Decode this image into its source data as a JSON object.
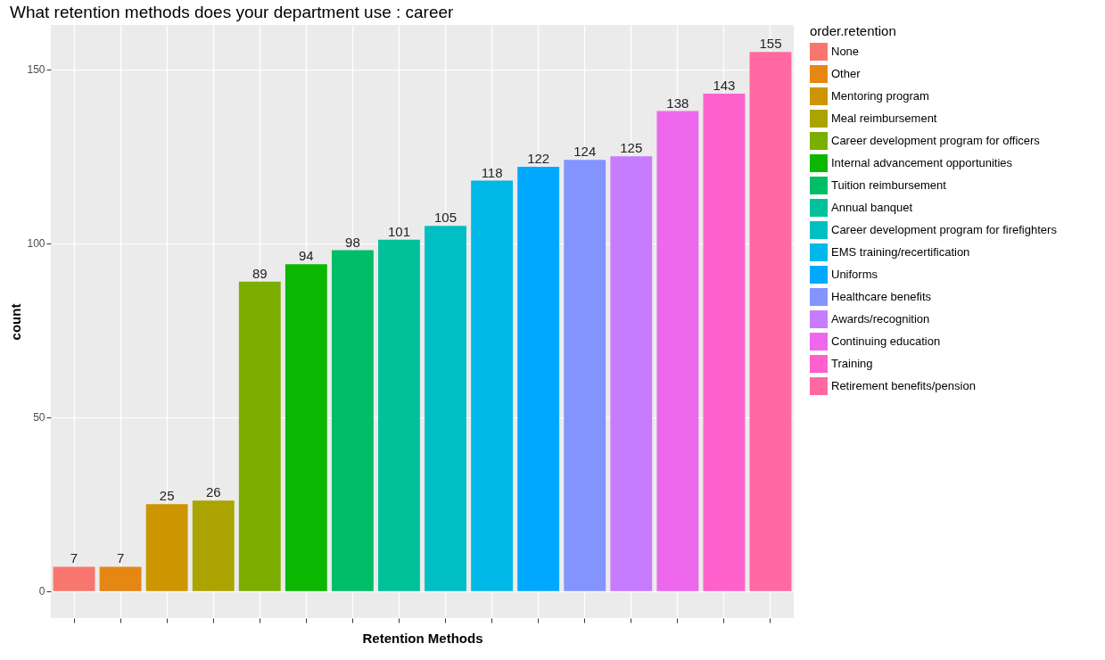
{
  "chart_data": {
    "type": "bar",
    "title": "What retention methods does your department use : career",
    "xlabel": "Retention Methods",
    "ylabel": "count",
    "legend_title": "order.retention",
    "categories": [
      null,
      null,
      null,
      null,
      null,
      null,
      null,
      null,
      null,
      null,
      null,
      null,
      null,
      null,
      null,
      null
    ],
    "series": [
      {
        "name": "None",
        "color": "#f8766d",
        "values": [
          7,
          null,
          null,
          null,
          null,
          null,
          null,
          null,
          null,
          null,
          null,
          null,
          null,
          null,
          null,
          null
        ]
      },
      {
        "name": "Other",
        "color": "#e68613",
        "values": [
          null,
          7,
          null,
          null,
          null,
          null,
          null,
          null,
          null,
          null,
          null,
          null,
          null,
          null,
          null,
          null
        ]
      },
      {
        "name": "Mentoring program",
        "color": "#cd9600",
        "values": [
          null,
          null,
          25,
          null,
          null,
          null,
          null,
          null,
          null,
          null,
          null,
          null,
          null,
          null,
          null,
          null
        ]
      },
      {
        "name": "Meal reimbursement",
        "color": "#aba300",
        "values": [
          null,
          null,
          null,
          26,
          null,
          null,
          null,
          null,
          null,
          null,
          null,
          null,
          null,
          null,
          null,
          null
        ]
      },
      {
        "name": "Career development program for officers",
        "color": "#7cae00",
        "values": [
          null,
          null,
          null,
          null,
          89,
          null,
          null,
          null,
          null,
          null,
          null,
          null,
          null,
          null,
          null,
          null
        ]
      },
      {
        "name": "Internal advancement opportunities",
        "color": "#0cb702",
        "values": [
          null,
          null,
          null,
          null,
          null,
          94,
          null,
          null,
          null,
          null,
          null,
          null,
          null,
          null,
          null,
          null
        ]
      },
      {
        "name": "Tuition reimbursement",
        "color": "#00be67",
        "values": [
          null,
          null,
          null,
          null,
          null,
          null,
          98,
          null,
          null,
          null,
          null,
          null,
          null,
          null,
          null,
          null
        ]
      },
      {
        "name": "Annual banquet",
        "color": "#00c19a",
        "values": [
          null,
          null,
          null,
          null,
          null,
          null,
          null,
          101,
          null,
          null,
          null,
          null,
          null,
          null,
          null,
          null
        ]
      },
      {
        "name": "Career development program for firefighters",
        "color": "#00bfc4",
        "values": [
          null,
          null,
          null,
          null,
          null,
          null,
          null,
          null,
          105,
          null,
          null,
          null,
          null,
          null,
          null,
          null
        ]
      },
      {
        "name": "EMS training/recertification",
        "color": "#00b8e7",
        "values": [
          null,
          null,
          null,
          null,
          null,
          null,
          null,
          null,
          null,
          118,
          null,
          null,
          null,
          null,
          null,
          null
        ]
      },
      {
        "name": "Uniforms",
        "color": "#00a9ff",
        "values": [
          null,
          null,
          null,
          null,
          null,
          null,
          null,
          null,
          null,
          null,
          122,
          null,
          null,
          null,
          null,
          null
        ]
      },
      {
        "name": "Healthcare benefits",
        "color": "#8494ff",
        "values": [
          null,
          null,
          null,
          null,
          null,
          null,
          null,
          null,
          null,
          null,
          null,
          124,
          null,
          null,
          null,
          null
        ]
      },
      {
        "name": "Awards/recognition",
        "color": "#c77cff",
        "values": [
          null,
          null,
          null,
          null,
          null,
          null,
          null,
          null,
          null,
          null,
          null,
          null,
          125,
          null,
          null,
          null
        ]
      },
      {
        "name": "Continuing education",
        "color": "#ed68ed",
        "values": [
          null,
          null,
          null,
          null,
          null,
          null,
          null,
          null,
          null,
          null,
          null,
          null,
          null,
          138,
          null,
          null
        ]
      },
      {
        "name": "Training",
        "color": "#ff61cc",
        "values": [
          null,
          null,
          null,
          null,
          null,
          null,
          null,
          null,
          null,
          null,
          null,
          null,
          null,
          null,
          143,
          null
        ]
      },
      {
        "name": "Retirement benefits/pension",
        "color": "#ff68a1",
        "values": [
          null,
          null,
          null,
          null,
          null,
          null,
          null,
          null,
          null,
          null,
          null,
          null,
          null,
          null,
          null,
          155
        ]
      }
    ],
    "ylim": [
      -7.75,
      162.75
    ],
    "yticks": [
      0,
      50,
      100,
      150
    ],
    "grid": true,
    "legend": "right",
    "data_labels": true
  }
}
